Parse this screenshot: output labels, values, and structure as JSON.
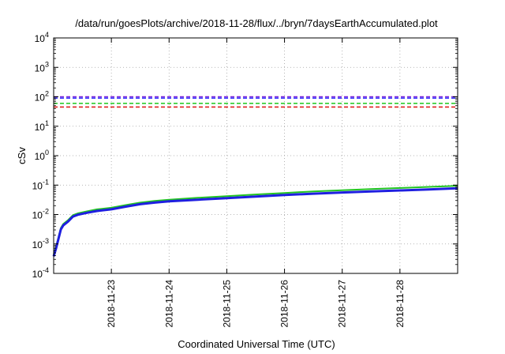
{
  "chart_data": {
    "type": "line",
    "title": "/data/run/goesPlots/archive/2018-11-28/flux/../bryn/7daysEarthAccumulated.plot",
    "xlabel": "Coordinated Universal Time (UTC)",
    "ylabel": "cSv",
    "yscale": "log",
    "ylim": [
      0.0001,
      10000
    ],
    "xlim": [
      "2018-11-22 00:00",
      "2018-11-29 00:00"
    ],
    "grid": true,
    "legend": "none",
    "x_ticks": [
      "2018-11-23",
      "2018-11-24",
      "2018-11-25",
      "2018-11-26",
      "2018-11-27",
      "2018-11-28"
    ],
    "y_ticks": [
      {
        "value": 0.0001,
        "base": "10",
        "exp": "-4"
      },
      {
        "value": 0.001,
        "base": "10",
        "exp": "-3"
      },
      {
        "value": 0.01,
        "base": "10",
        "exp": "-2"
      },
      {
        "value": 0.1,
        "base": "10",
        "exp": "-1"
      },
      {
        "value": 1,
        "base": "10",
        "exp": "0"
      },
      {
        "value": 10,
        "base": "10",
        "exp": "1"
      },
      {
        "value": 100,
        "base": "10",
        "exp": "2"
      },
      {
        "value": 1000,
        "base": "10",
        "exp": "3"
      },
      {
        "value": 10000,
        "base": "10",
        "exp": "4"
      }
    ],
    "thresholds": [
      {
        "value": 100,
        "color": "#7a1fd6",
        "style": "dashed"
      },
      {
        "value": 90,
        "color": "#3b3bff",
        "style": "dashed"
      },
      {
        "value": 60,
        "color": "#2ecc2e",
        "style": "dashed"
      },
      {
        "value": 45,
        "color": "#e02020",
        "style": "dashed"
      }
    ],
    "series": [
      {
        "color": "#22c422",
        "width": 2,
        "x": [
          "2018-11-22 00:00",
          "2018-11-22 01:00",
          "2018-11-22 02:00",
          "2018-11-22 03:00",
          "2018-11-22 04:00",
          "2018-11-22 06:00",
          "2018-11-22 08:00",
          "2018-11-22 10:00",
          "2018-11-22 14:00",
          "2018-11-22 18:00",
          "2018-11-23 00:00",
          "2018-11-23 06:00",
          "2018-11-23 12:00",
          "2018-11-23 18:00",
          "2018-11-24 00:00",
          "2018-11-24 12:00",
          "2018-11-25 00:00",
          "2018-11-25 12:00",
          "2018-11-26 00:00",
          "2018-11-26 12:00",
          "2018-11-27 00:00",
          "2018-11-27 12:00",
          "2018-11-28 00:00",
          "2018-11-28 12:00",
          "2018-11-29 00:00"
        ],
        "y": [
          0.00045,
          0.0008,
          0.0017,
          0.0035,
          0.0048,
          0.0065,
          0.0095,
          0.011,
          0.013,
          0.015,
          0.017,
          0.021,
          0.0255,
          0.029,
          0.032,
          0.037,
          0.042,
          0.048,
          0.054,
          0.061,
          0.067,
          0.073,
          0.08,
          0.087,
          0.095
        ]
      },
      {
        "color": "#1f1fe0",
        "width": 3,
        "x": [
          "2018-11-22 00:00",
          "2018-11-22 01:00",
          "2018-11-22 02:00",
          "2018-11-22 03:00",
          "2018-11-22 04:00",
          "2018-11-22 06:00",
          "2018-11-22 08:00",
          "2018-11-22 10:00",
          "2018-11-22 14:00",
          "2018-11-22 18:00",
          "2018-11-23 00:00",
          "2018-11-23 06:00",
          "2018-11-23 12:00",
          "2018-11-23 18:00",
          "2018-11-24 00:00",
          "2018-11-24 12:00",
          "2018-11-25 00:00",
          "2018-11-25 12:00",
          "2018-11-26 00:00",
          "2018-11-26 12:00",
          "2018-11-27 00:00",
          "2018-11-27 12:00",
          "2018-11-28 00:00",
          "2018-11-28 12:00",
          "2018-11-29 00:00"
        ],
        "y": [
          0.00038,
          0.0007,
          0.0015,
          0.0031,
          0.0043,
          0.0058,
          0.0085,
          0.0098,
          0.0115,
          0.0132,
          0.015,
          0.0185,
          0.0225,
          0.0255,
          0.028,
          0.032,
          0.036,
          0.041,
          0.046,
          0.051,
          0.056,
          0.061,
          0.066,
          0.0715,
          0.078
        ]
      }
    ]
  }
}
